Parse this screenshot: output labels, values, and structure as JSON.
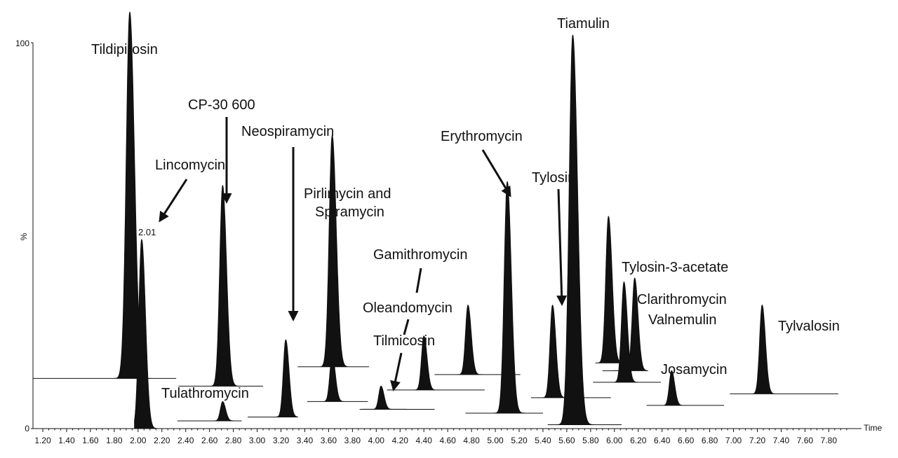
{
  "chart_data": {
    "type": "line",
    "title": "",
    "xlabel": "Time",
    "ylabel": "%",
    "xlim": [
      1.1,
      7.88
    ],
    "ylim": [
      0,
      100
    ],
    "x_ticks": [
      "1.20",
      "1.40",
      "1.60",
      "1.80",
      "2.00",
      "2.20",
      "2.40",
      "2.60",
      "2.80",
      "3.00",
      "3.20",
      "3.40",
      "3.60",
      "3.80",
      "4.00",
      "4.20",
      "4.40",
      "4.60",
      "4.80",
      "5.00",
      "5.20",
      "5.40",
      "5.60",
      "5.80",
      "6.00",
      "6.20",
      "6.40",
      "6.60",
      "6.80",
      "7.00",
      "7.20",
      "7.40",
      "7.60",
      "7.80"
    ],
    "y_ticks": [
      "100",
      "0"
    ],
    "peak_annotation": "2.01",
    "series": [
      {
        "name": "Tildipirosin",
        "rt": 1.93,
        "height": 95,
        "baseline": 13
      },
      {
        "name": "Tulathromycin",
        "rt": 2.03,
        "height": 49,
        "baseline": 0
      },
      {
        "name": "Lincomycin",
        "rt": 2.71,
        "height": 5,
        "baseline": 2
      },
      {
        "name": "CP-30 600",
        "rt": 2.71,
        "height": 52,
        "baseline": 11
      },
      {
        "name": "Neospiramycin",
        "rt": 3.24,
        "height": 20,
        "baseline": 3
      },
      {
        "name": "Pirlimycin and Spiramycin",
        "rt": 3.63,
        "height": 60,
        "baseline": 16
      },
      {
        "name": "Pirlimycin and Spiramycin",
        "rt": 3.63,
        "height": 12,
        "baseline": 7
      },
      {
        "name": "Tilmicosin",
        "rt": 4.04,
        "height": 6,
        "baseline": 5
      },
      {
        "name": "Oleandomycin",
        "rt": 4.4,
        "height": 14,
        "baseline": 10
      },
      {
        "name": "Gamithromycin",
        "rt": 4.77,
        "height": 18,
        "baseline": 14
      },
      {
        "name": "Erythromycin",
        "rt": 5.1,
        "height": 60,
        "baseline": 4
      },
      {
        "name": "Tylosin",
        "rt": 5.48,
        "height": 24,
        "baseline": 8
      },
      {
        "name": "Tiamulin",
        "rt": 5.65,
        "height": 101,
        "baseline": 1
      },
      {
        "name": "Tylosin-3-acetate",
        "rt": 5.95,
        "height": 38,
        "baseline": 17
      },
      {
        "name": "Clarithromycin",
        "rt": 6.08,
        "height": 26,
        "baseline": 12
      },
      {
        "name": "Valnemulin",
        "rt": 6.17,
        "height": 24,
        "baseline": 15
      },
      {
        "name": "Josamycin",
        "rt": 6.48,
        "height": 9,
        "baseline": 6
      },
      {
        "name": "Tylvalosin",
        "rt": 7.24,
        "height": 23,
        "baseline": 9
      }
    ],
    "labels": [
      {
        "text": "Tildipirosin"
      },
      {
        "text": "CP-30 600"
      },
      {
        "text": "Lincomycin"
      },
      {
        "text": "Neospiramycin"
      },
      {
        "text": "Pirlimycin and"
      },
      {
        "text": "Spiramycin"
      },
      {
        "text": "Gamithromycin"
      },
      {
        "text": "Oleandomycin"
      },
      {
        "text": "Tilmicosin"
      },
      {
        "text": "Erythromycin"
      },
      {
        "text": "Tylosin"
      },
      {
        "text": "Tiamulin"
      },
      {
        "text": "Tylosin-3-acetate"
      },
      {
        "text": "Clarithromycin"
      },
      {
        "text": "Valnemulin"
      },
      {
        "text": "Josamycin"
      },
      {
        "text": "Tylvalosin"
      },
      {
        "text": "Tulathromycin"
      }
    ]
  }
}
